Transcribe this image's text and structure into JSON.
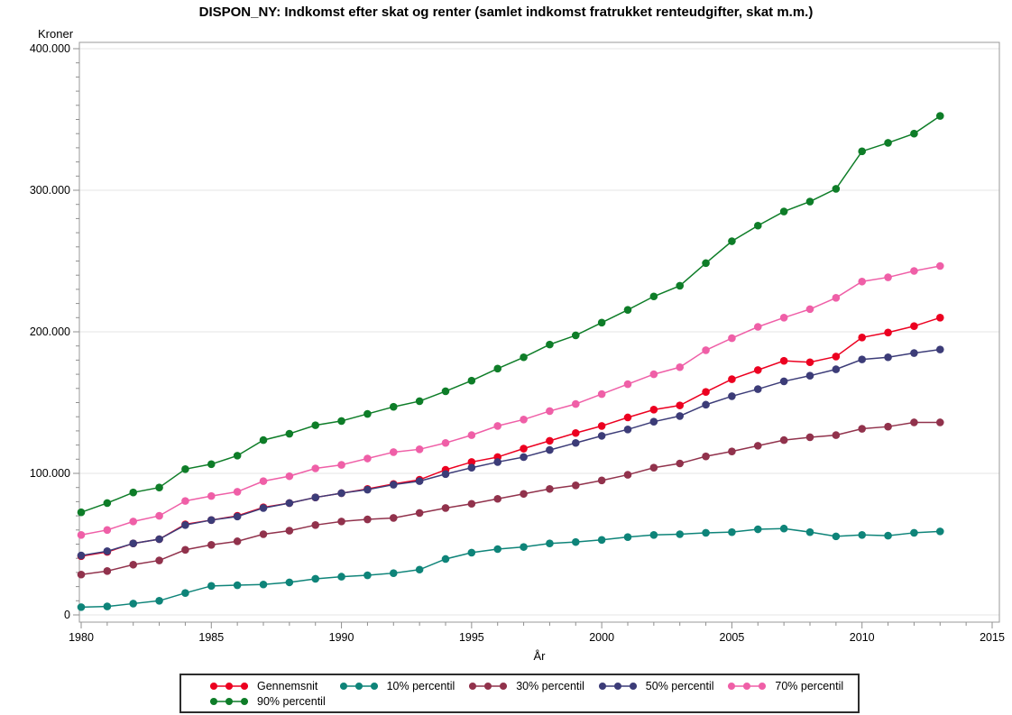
{
  "title": "DISPON_NY: Indkomst efter skat og renter (samlet indkomst fratrukket renteudgifter, skat m.m.)",
  "chart_data": {
    "type": "line",
    "title": "DISPON_NY: Indkomst efter skat og renter (samlet indkomst fratrukket renteudgifter, skat m.m.)",
    "xlabel": "År",
    "ylabel": "Kroner",
    "xlim": [
      1980,
      2015
    ],
    "ylim": [
      0,
      400000
    ],
    "grid": "horizontal-major",
    "legend_position": "bottom",
    "x_major_ticks": [
      1980,
      1985,
      1990,
      1995,
      2000,
      2005,
      2010,
      2015
    ],
    "x_minor_step": 1,
    "y_major_ticks": [
      {
        "value": 0,
        "label": "0"
      },
      {
        "value": 100000,
        "label": "100.000"
      },
      {
        "value": 200000,
        "label": "200.000"
      },
      {
        "value": 300000,
        "label": "300.000"
      },
      {
        "value": 400000,
        "label": "400.000"
      }
    ],
    "y_minor_step": 10000,
    "x": [
      1980,
      1981,
      1982,
      1983,
      1984,
      1985,
      1986,
      1987,
      1988,
      1989,
      1990,
      1991,
      1992,
      1993,
      1994,
      1995,
      1996,
      1997,
      1998,
      1999,
      2000,
      2001,
      2002,
      2003,
      2004,
      2005,
      2006,
      2007,
      2008,
      2009,
      2010,
      2011,
      2012,
      2013
    ],
    "series": [
      {
        "name": "Gennemsnit",
        "color": "#ec0020",
        "values": [
          41500,
          44500,
          50500,
          53500,
          64000,
          67000,
          70000,
          76000,
          79000,
          83000,
          86000,
          89000,
          92500,
          95500,
          102500,
          108000,
          111500,
          117500,
          123000,
          128500,
          133500,
          139500,
          145000,
          148000,
          157500,
          166500,
          173000,
          179500,
          178500,
          182500,
          196000,
          199500,
          204000,
          210000
        ]
      },
      {
        "name": "10% percentil",
        "color": "#0e8479",
        "values": [
          5500,
          6000,
          8000,
          10000,
          15500,
          20500,
          21000,
          21500,
          23000,
          25500,
          27000,
          28000,
          29500,
          32000,
          39500,
          44000,
          46500,
          48000,
          50500,
          51500,
          53000,
          55000,
          56500,
          57000,
          58000,
          58500,
          60500,
          61000,
          58500,
          55500,
          56500,
          56000,
          58000,
          59000
        ]
      },
      {
        "name": "30% percentil",
        "color": "#91324c",
        "values": [
          28500,
          31000,
          35500,
          38500,
          46000,
          49500,
          52000,
          57000,
          59500,
          63500,
          66000,
          67500,
          68500,
          72000,
          75500,
          78500,
          82000,
          85500,
          89000,
          91500,
          95000,
          99000,
          104000,
          107000,
          112000,
          115500,
          119500,
          123500,
          125500,
          127000,
          131500,
          133000,
          136000,
          136000
        ]
      },
      {
        "name": "50% percentil",
        "color": "#3c3c78",
        "values": [
          42000,
          45000,
          50500,
          53500,
          63500,
          67000,
          69500,
          75500,
          79000,
          83000,
          86000,
          88500,
          92000,
          94500,
          99500,
          104000,
          108000,
          111500,
          116500,
          121500,
          126500,
          131000,
          136500,
          140500,
          148500,
          154500,
          159500,
          165000,
          169000,
          173500,
          180500,
          182000,
          185000,
          187500
        ]
      },
      {
        "name": "70% percentil",
        "color": "#ef5fa7",
        "values": [
          56500,
          60000,
          66000,
          70000,
          80500,
          84000,
          87000,
          94500,
          98000,
          103500,
          106000,
          110500,
          115000,
          117000,
          121500,
          127000,
          133500,
          138000,
          144000,
          149000,
          156000,
          163000,
          170000,
          175000,
          187000,
          195500,
          203500,
          210000,
          216000,
          224000,
          235500,
          238500,
          243000,
          246500
        ]
      },
      {
        "name": "90% percentil",
        "color": "#0e7d28",
        "values": [
          72500,
          79000,
          86500,
          90000,
          103000,
          106500,
          112500,
          123500,
          128000,
          134000,
          137000,
          142000,
          147000,
          151000,
          158000,
          165500,
          174000,
          182000,
          191000,
          197500,
          206500,
          215500,
          225000,
          232500,
          248500,
          264000,
          275000,
          285000,
          292000,
          301000,
          327500,
          333500,
          340000,
          352500
        ]
      }
    ]
  },
  "colors": {
    "background": "#ffffff",
    "frame": "#9a9a9a",
    "tick": "#8f8f8f",
    "grid": "#e6e6e6",
    "text": "#000000",
    "legend_border": "#2d2d2d"
  }
}
